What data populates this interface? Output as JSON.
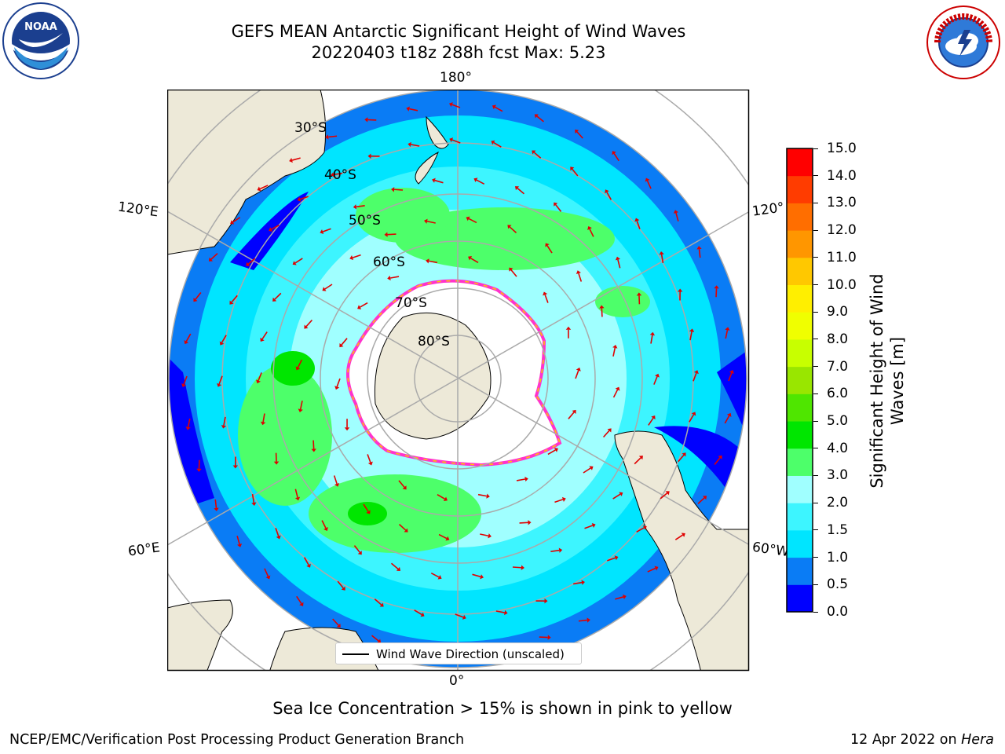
{
  "title": {
    "line1": "GEFS MEAN Antarctic Significant Height of Wind Waves",
    "line2": "20220403 t18z 288h fcst   Max: 5.23"
  },
  "logos": {
    "left": {
      "name": "noaa-logo",
      "text": "NOAA"
    },
    "right": {
      "name": "national-weather-service-logo",
      "text": "NATIONAL WEATHER SERVICE"
    }
  },
  "map": {
    "projection": "south-polar-stereographic",
    "lon_labels": {
      "top": "180°",
      "bottom": "0°",
      "left_upper": "120°E",
      "left_lower": "60°E",
      "right_upper": "120°",
      "right_lower": "60°W"
    },
    "lat_labels": [
      "30°S",
      "40°S",
      "50°S",
      "60°S",
      "70°S",
      "80°S"
    ],
    "legend": "Wind Wave Direction (unscaled)",
    "colors": {
      "land": "#ede9d8",
      "ice_edge": "#ff33cc",
      "arrow": "#e00000",
      "grid": "#aaaaaa"
    }
  },
  "colorbar": {
    "label": "Significant Height of Wind Waves [m]",
    "ticks": [
      "0.0",
      "0.5",
      "1.0",
      "1.5",
      "2.0",
      "3.0",
      "4.0",
      "5.0",
      "6.0",
      "7.0",
      "8.0",
      "9.0",
      "10.0",
      "11.0",
      "12.0",
      "13.0",
      "14.0",
      "15.0"
    ],
    "colors": [
      "#0000ff",
      "#0a7cf5",
      "#00e5ff",
      "#3df5ff",
      "#a0ffff",
      "#4dff6a",
      "#00e600",
      "#4fe600",
      "#99e600",
      "#c8ff00",
      "#f0ff00",
      "#ffef00",
      "#ffc800",
      "#ff9600",
      "#ff6e00",
      "#ff3c00",
      "#ff0000"
    ]
  },
  "bottom_note": "Sea Ice Concentration > 15% is shown in pink to yellow",
  "footer": {
    "left": "NCEP/EMC/Verification Post Processing Product Generation Branch",
    "right_prefix": "12 Apr 2022 on ",
    "right_italic": "Hera"
  }
}
